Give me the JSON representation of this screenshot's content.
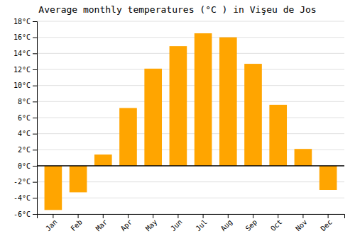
{
  "chart_data": {
    "type": "bar",
    "title": "Average monthly temperatures (°C ) in Vişeu de Jos",
    "categories": [
      "Jan",
      "Feb",
      "Mar",
      "Apr",
      "May",
      "Jun",
      "Jul",
      "Aug",
      "Sep",
      "Oct",
      "Nov",
      "Dec"
    ],
    "values": [
      -5.5,
      -3.3,
      1.4,
      7.2,
      12.1,
      14.9,
      16.5,
      16.0,
      12.7,
      7.6,
      2.1,
      -3.0
    ],
    "color": "#FFA500",
    "ylim": [
      -6,
      18
    ],
    "yticks": [
      {
        "value": -6,
        "label": "-6°C"
      },
      {
        "value": -4,
        "label": "-4°C"
      },
      {
        "value": -2,
        "label": "-2°C"
      },
      {
        "value": 0,
        "label": "0°C"
      },
      {
        "value": 2,
        "label": "2°C"
      },
      {
        "value": 4,
        "label": "4°C"
      },
      {
        "value": 6,
        "label": "6°C"
      },
      {
        "value": 8,
        "label": "8°C"
      },
      {
        "value": 10,
        "label": "10°C"
      },
      {
        "value": 12,
        "label": "12°C"
      },
      {
        "value": 14,
        "label": "14°C"
      },
      {
        "value": 16,
        "label": "16°C"
      },
      {
        "value": 18,
        "label": "18°C"
      }
    ],
    "grid": true
  }
}
